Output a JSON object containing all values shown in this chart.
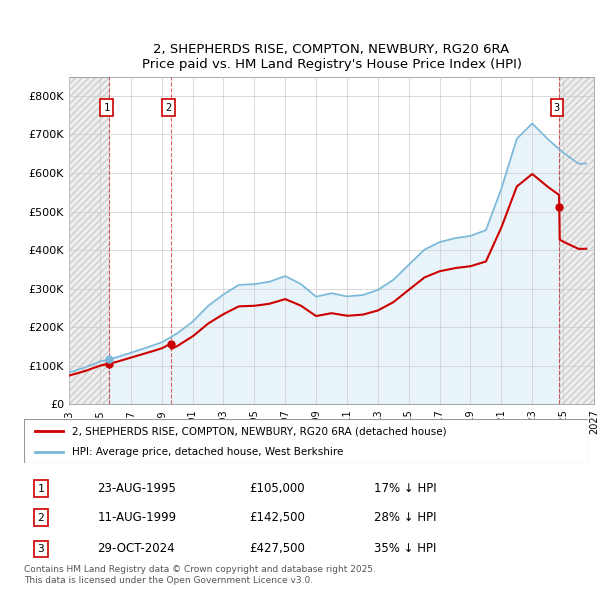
{
  "title_line1": "2, SHEPHERDS RISE, COMPTON, NEWBURY, RG20 6RA",
  "title_line2": "Price paid vs. HM Land Registry's House Price Index (HPI)",
  "ylim": [
    0,
    850000
  ],
  "yticks": [
    0,
    100000,
    200000,
    300000,
    400000,
    500000,
    600000,
    700000,
    800000
  ],
  "ytick_labels": [
    "£0",
    "£100K",
    "£200K",
    "£300K",
    "£400K",
    "£500K",
    "£600K",
    "£700K",
    "£800K"
  ],
  "sale_prices": [
    105000,
    142500,
    427500
  ],
  "sale_labels": [
    "1",
    "2",
    "3"
  ],
  "hpi_color": "#7ab8d9",
  "price_color": "#cc0000",
  "legend_entries": [
    "2, SHEPHERDS RISE, COMPTON, NEWBURY, RG20 6RA (detached house)",
    "HPI: Average price, detached house, West Berkshire"
  ],
  "table_rows": [
    [
      "1",
      "23-AUG-1995",
      "£105,000",
      "17% ↓ HPI"
    ],
    [
      "2",
      "11-AUG-1999",
      "£142,500",
      "28% ↓ HPI"
    ],
    [
      "3",
      "29-OCT-2024",
      "£427,500",
      "35% ↓ HPI"
    ]
  ],
  "footer_text": "Contains HM Land Registry data © Crown copyright and database right 2025.\nThis data is licensed under the Open Government Licence v3.0.",
  "grid_color": "#cccccc",
  "xlim_start": 1993.0,
  "xlim_end": 2027.0,
  "key_years": [
    1993,
    1994,
    1995,
    1996,
    1997,
    1998,
    1999,
    2000,
    2001,
    2002,
    2003,
    2004,
    2005,
    2006,
    2007,
    2008,
    2009,
    2010,
    2011,
    2012,
    2013,
    2014,
    2015,
    2016,
    2017,
    2018,
    2019,
    2020,
    2021,
    2022,
    2023,
    2024,
    2025,
    2026
  ],
  "key_values": [
    82000,
    95000,
    112000,
    122000,
    135000,
    148000,
    162000,
    185000,
    215000,
    255000,
    285000,
    310000,
    312000,
    318000,
    332000,
    312000,
    278000,
    287000,
    278000,
    282000,
    296000,
    322000,
    362000,
    402000,
    422000,
    432000,
    437000,
    452000,
    560000,
    690000,
    730000,
    690000,
    655000,
    625000
  ]
}
